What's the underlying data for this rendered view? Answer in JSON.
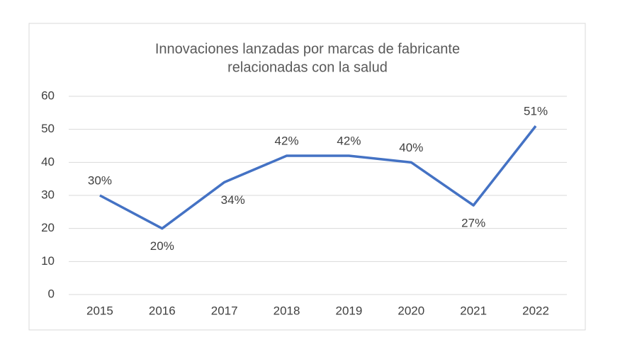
{
  "chart_data": {
    "type": "line",
    "title": [
      "Innovaciones lanzadas por marcas de fabricante",
      "relacionadas con la salud"
    ],
    "categories": [
      "2015",
      "2016",
      "2017",
      "2018",
      "2019",
      "2020",
      "2021",
      "2022"
    ],
    "series": [
      {
        "name": "Innovaciones",
        "color": "#4472c4",
        "values": [
          30,
          20,
          34,
          42,
          42,
          40,
          27,
          51
        ],
        "value_labels": [
          "30%",
          "20%",
          "34%",
          "42%",
          "42%",
          "40%",
          "27%",
          "51%"
        ]
      }
    ],
    "ylim": [
      0,
      60
    ],
    "yticks": [
      0,
      10,
      20,
      30,
      40,
      50,
      60
    ],
    "grid": true
  }
}
